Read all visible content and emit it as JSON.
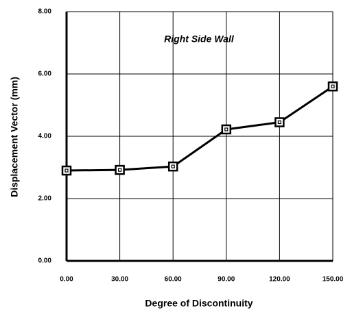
{
  "chart_data": {
    "type": "line",
    "annotation": "Right Side Wall",
    "xlabel": "Degree of Discontinuity",
    "ylabel": "Displacement Vector (mm)",
    "x": [
      0,
      30,
      60,
      90,
      120,
      150
    ],
    "values": [
      2.9,
      2.92,
      3.03,
      4.22,
      4.45,
      5.6
    ],
    "color": "#000000",
    "xlim": [
      0,
      150
    ],
    "xticks": [
      {
        "value": 0,
        "label": "0.00"
      },
      {
        "value": 30,
        "label": "30.00"
      },
      {
        "value": 60,
        "label": "60.00"
      },
      {
        "value": 90,
        "label": "90.00"
      },
      {
        "value": 120,
        "label": "120.00"
      },
      {
        "value": 150,
        "label": "150.00"
      }
    ],
    "ylim": [
      0,
      8
    ],
    "yticks": [
      {
        "value": 0,
        "label": "0.00"
      },
      {
        "value": 2,
        "label": "2.00"
      },
      {
        "value": 4,
        "label": "4.00"
      },
      {
        "value": 6,
        "label": "6.00"
      },
      {
        "value": 8,
        "label": "8.00"
      }
    ],
    "grid": true
  }
}
